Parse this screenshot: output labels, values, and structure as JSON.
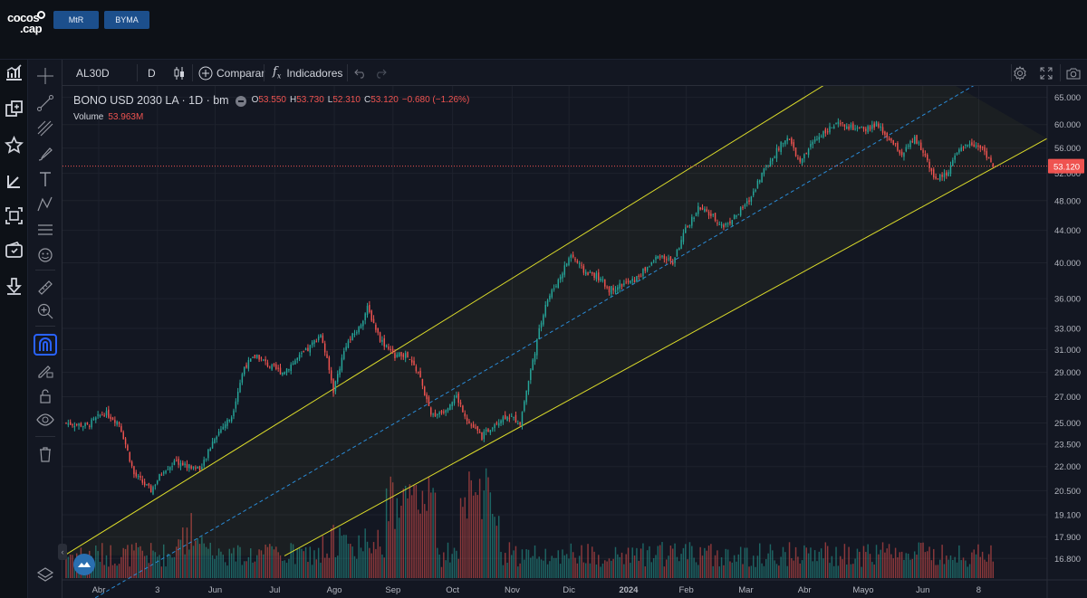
{
  "header": {
    "logo_line1": "cocos",
    "logo_line2": ".cap",
    "market_buttons": [
      "MtR",
      "BYMA"
    ]
  },
  "toolbar": {
    "symbol": "AL30D",
    "interval": "D",
    "compare_label": "Comparar",
    "indicators_label": "Indicadores"
  },
  "legend": {
    "title": "BONO USD 2030 LA · 1D · bm",
    "open_label": "O",
    "open": "53.550",
    "high_label": "H",
    "high": "53.730",
    "low_label": "L",
    "low": "52.310",
    "close_label": "C",
    "close": "53.120",
    "change": "−0.680 (−1.26%)",
    "volume_label": "Volume",
    "volume_value": "53.963M"
  },
  "colors": {
    "up": "#26a69a",
    "down": "#ef5350",
    "channel": "#dcdc2a",
    "midline": "#2a8bd6",
    "price_tag": "#ef5350",
    "accent": "#2962ff"
  },
  "chart_data": {
    "type": "candlestick",
    "title": "BONO USD 2030 LA · 1D · bm",
    "x_tick_labels": [
      "Abr",
      "3",
      "Jun",
      "Jul",
      "Ago",
      "Sep",
      "Oct",
      "Nov",
      "Dic",
      "2024",
      "Feb",
      "Mar",
      "Abr",
      "Mayo",
      "Jun",
      "8"
    ],
    "y_tick_labels": [
      "65.000",
      "60.000",
      "56.000",
      "52.000",
      "48.000",
      "44.000",
      "40.000",
      "36.000",
      "33.000",
      "31.000",
      "29.000",
      "27.000",
      "25.000",
      "23.500",
      "22.000",
      "20.500",
      "19.100",
      "17.900",
      "16.800"
    ],
    "y_scale": "log",
    "y_range": [
      16.2,
      66.5
    ],
    "last_price": "53.120",
    "close_anchors": [
      [
        0,
        25.0
      ],
      [
        10,
        24.8
      ],
      [
        18,
        25.8
      ],
      [
        25,
        25.0
      ],
      [
        32,
        21.5
      ],
      [
        40,
        20.5
      ],
      [
        46,
        21.8
      ],
      [
        52,
        22.3
      ],
      [
        58,
        22.0
      ],
      [
        64,
        21.9
      ],
      [
        70,
        24.0
      ],
      [
        78,
        25.5
      ],
      [
        84,
        29.5
      ],
      [
        90,
        30.5
      ],
      [
        96,
        29.5
      ],
      [
        102,
        29.0
      ],
      [
        108,
        30.0
      ],
      [
        114,
        31.0
      ],
      [
        120,
        32.5
      ],
      [
        126,
        27.5
      ],
      [
        132,
        31.5
      ],
      [
        138,
        33.0
      ],
      [
        142,
        35.0
      ],
      [
        148,
        32.0
      ],
      [
        154,
        30.5
      ],
      [
        160,
        30.5
      ],
      [
        166,
        29.0
      ],
      [
        172,
        25.5
      ],
      [
        178,
        26.0
      ],
      [
        184,
        27.0
      ],
      [
        190,
        25.0
      ],
      [
        196,
        24.0
      ],
      [
        202,
        25.0
      ],
      [
        208,
        25.6
      ],
      [
        214,
        25.0
      ],
      [
        220,
        30.0
      ],
      [
        226,
        35.5
      ],
      [
        232,
        38.0
      ],
      [
        238,
        41.0
      ],
      [
        244,
        39.0
      ],
      [
        250,
        38.5
      ],
      [
        256,
        37.0
      ],
      [
        262,
        37.5
      ],
      [
        268,
        38.0
      ],
      [
        274,
        39.5
      ],
      [
        280,
        41.0
      ],
      [
        286,
        40.0
      ],
      [
        292,
        44.0
      ],
      [
        298,
        47.0
      ],
      [
        304,
        46.0
      ],
      [
        310,
        44.5
      ],
      [
        316,
        46.0
      ],
      [
        322,
        48.0
      ],
      [
        328,
        52.0
      ],
      [
        334,
        55.0
      ],
      [
        340,
        58.0
      ],
      [
        346,
        53.5
      ],
      [
        352,
        57.0
      ],
      [
        358,
        59.0
      ],
      [
        364,
        60.0
      ],
      [
        370,
        59.5
      ],
      [
        376,
        59.0
      ],
      [
        382,
        60.0
      ],
      [
        388,
        57.5
      ],
      [
        394,
        55.0
      ],
      [
        400,
        57.5
      ],
      [
        404,
        55.5
      ],
      [
        410,
        51.0
      ],
      [
        415,
        52.0
      ],
      [
        420,
        55.0
      ],
      [
        426,
        57.0
      ],
      [
        432,
        56.0
      ],
      [
        437,
        53.12
      ]
    ],
    "volume_range": [
      0,
      1
    ],
    "channel": {
      "upper": {
        "date_index": [
          0,
          352
        ],
        "price": [
          17.0,
          66.0
        ]
      },
      "lower": {
        "date_index": [
          90,
          438
        ],
        "price": [
          16.2,
          53.0
        ]
      },
      "middle_extends": true
    }
  }
}
